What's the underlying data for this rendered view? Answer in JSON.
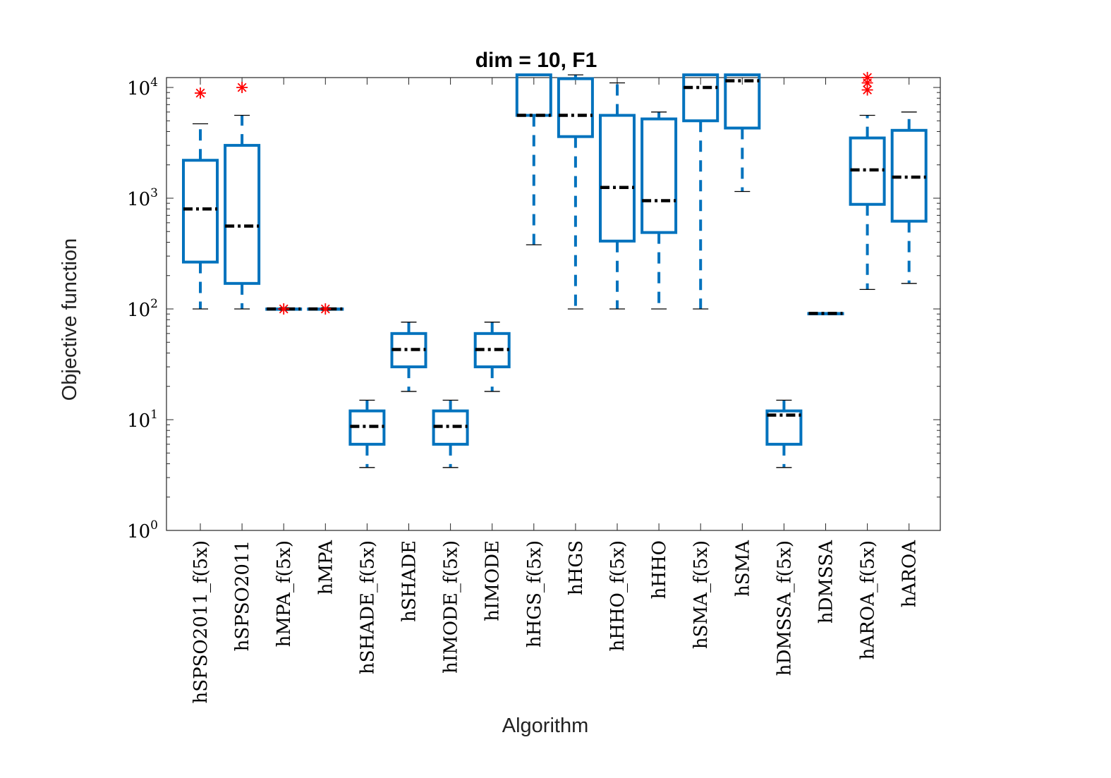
{
  "chart_data": {
    "type": "boxplot",
    "title": "dim = 10,  F1",
    "xlabel": "Algorithm",
    "ylabel": "Objective function",
    "yscale": "log",
    "ylim": [
      1,
      13000
    ],
    "yticks": [
      {
        "value": 1,
        "base": "10",
        "exp": "0"
      },
      {
        "value": 10,
        "base": "10",
        "exp": "1"
      },
      {
        "value": 100,
        "base": "10",
        "exp": "2"
      },
      {
        "value": 1000,
        "base": "10",
        "exp": "3"
      },
      {
        "value": 10000,
        "base": "10",
        "exp": "4"
      }
    ],
    "grid": false,
    "colors": {
      "box": "#0072BD",
      "median": "#000000",
      "outlier": "#FF0000"
    },
    "categories": [
      "hSPSO2011_f(5x)",
      "hSPSO2011",
      "hMPA_f(5x)",
      "hMPA",
      "hSHADE_f(5x)",
      "hSHADE",
      "hIMODE_f(5x)",
      "hIMODE",
      "hHGS_f(5x)",
      "hHGS",
      "hHHO_f(5x)",
      "hHHO",
      "hSMA_f(5x)",
      "hSMA",
      "hDMSSA_f(5x)",
      "hDMSSA",
      "hAROA_f(5x)",
      "hAROA"
    ],
    "boxes": [
      {
        "min": 100,
        "q1": 265,
        "median": 800,
        "q3": 2200,
        "max": 4700,
        "outliers": [
          8900
        ]
      },
      {
        "min": 100,
        "q1": 170,
        "median": 560,
        "q3": 3000,
        "max": 5600,
        "outliers": [
          10000
        ]
      },
      {
        "min": 100,
        "q1": 100,
        "median": 100,
        "q3": 100,
        "max": 100,
        "outliers": [
          100
        ]
      },
      {
        "min": 100,
        "q1": 100,
        "median": 100,
        "q3": 100,
        "max": 100,
        "outliers": [
          100
        ]
      },
      {
        "min": 3.7,
        "q1": 6,
        "median": 8.7,
        "q3": 12,
        "max": 15,
        "outliers": []
      },
      {
        "min": 18,
        "q1": 30,
        "median": 43,
        "q3": 60,
        "max": 76,
        "outliers": []
      },
      {
        "min": 3.7,
        "q1": 6,
        "median": 8.7,
        "q3": 12,
        "max": 15,
        "outliers": []
      },
      {
        "min": 18,
        "q1": 30,
        "median": 43,
        "q3": 60,
        "max": 76,
        "outliers": []
      },
      {
        "min": 380,
        "q1": 5600,
        "median": 5600,
        "q3": 13000,
        "max": 13000,
        "outliers": []
      },
      {
        "min": 100,
        "q1": 3600,
        "median": 5600,
        "q3": 12000,
        "max": 13000,
        "outliers": []
      },
      {
        "min": 100,
        "q1": 410,
        "median": 1250,
        "q3": 5600,
        "max": 11000,
        "outliers": []
      },
      {
        "min": 100,
        "q1": 490,
        "median": 950,
        "q3": 5200,
        "max": 6000,
        "outliers": []
      },
      {
        "min": 100,
        "q1": 5000,
        "median": 10000,
        "q3": 13000,
        "max": 13000,
        "outliers": []
      },
      {
        "min": 1150,
        "q1": 4300,
        "median": 11500,
        "q3": 13000,
        "max": 13000,
        "outliers": []
      },
      {
        "min": 3.7,
        "q1": 6,
        "median": 11,
        "q3": 12,
        "max": 15,
        "outliers": []
      },
      {
        "min": 91,
        "q1": 91,
        "median": 91,
        "q3": 91,
        "max": 91,
        "outliers": []
      },
      {
        "min": 150,
        "q1": 880,
        "median": 1800,
        "q3": 3500,
        "max": 5600,
        "outliers": [
          9500,
          11000,
          12300
        ]
      },
      {
        "min": 170,
        "q1": 620,
        "median": 1550,
        "q3": 4100,
        "max": 6000,
        "outliers": []
      }
    ]
  }
}
